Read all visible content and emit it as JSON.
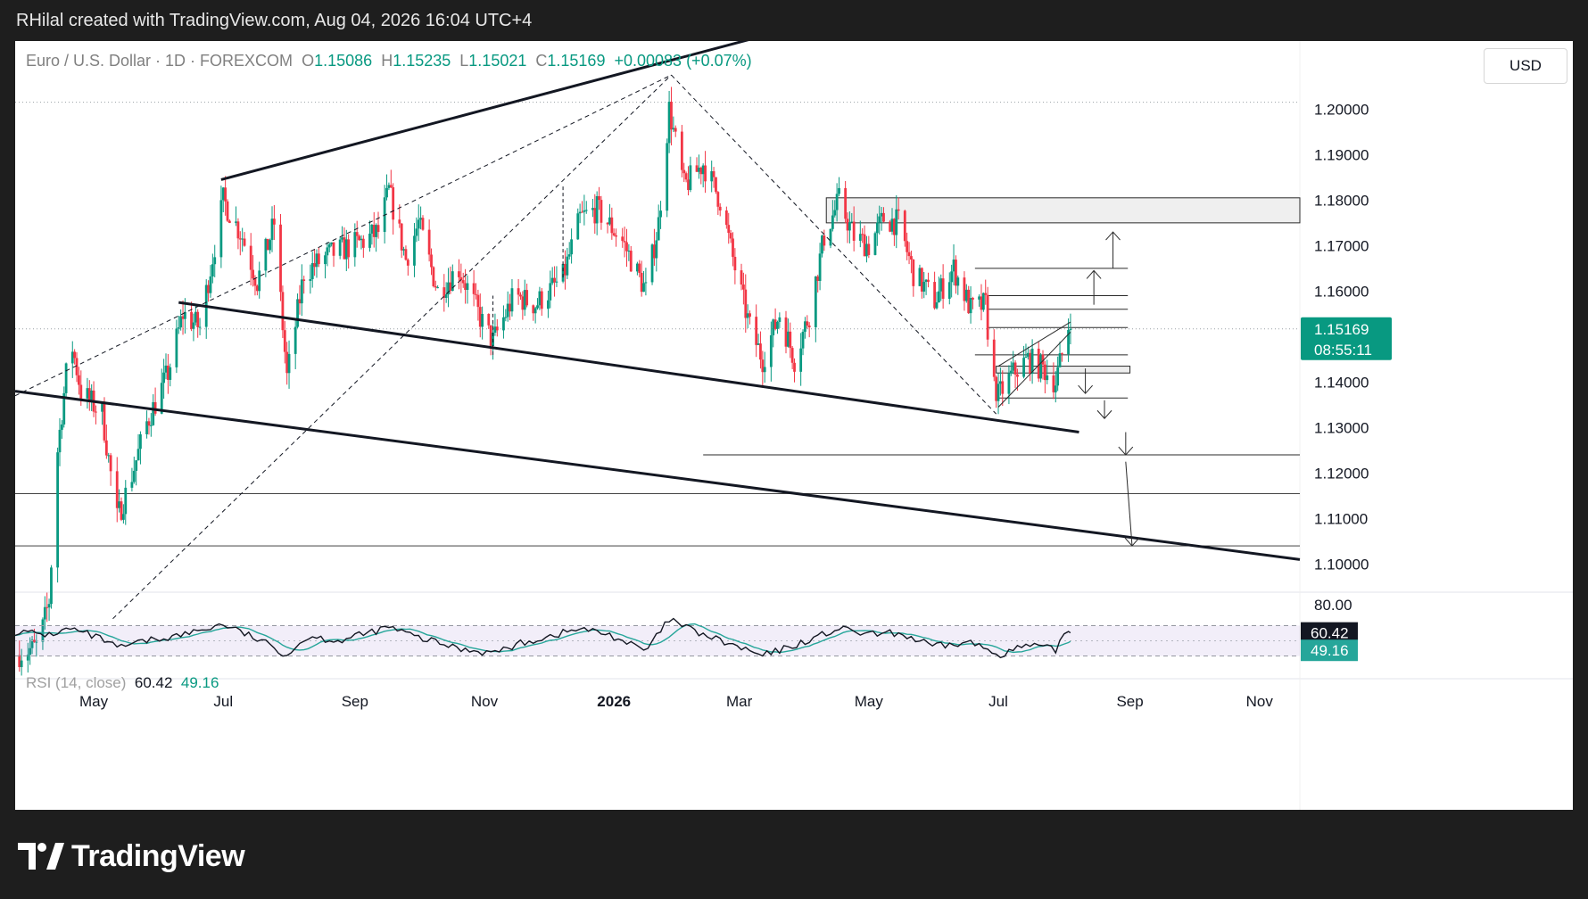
{
  "header": {
    "caption": "RHilal created with TradingView.com, Aug 04, 2026 16:04 UTC+4"
  },
  "legend": {
    "symbol": "Euro / U.S. Dollar · 1D · FOREXCOM",
    "o_label": "O",
    "open": "1.15086",
    "h_label": "H",
    "high": "1.15235",
    "l_label": "L",
    "low": "1.15021",
    "c_label": "C",
    "close": "1.15169",
    "change": "+0.00083 (+0.07%)"
  },
  "currency_button": "USD",
  "rsi": {
    "label": "RSI (14, close)",
    "value": "60.42",
    "ma": "49.16"
  },
  "branding": {
    "name": "TradingView"
  },
  "colors": {
    "up": "#089981",
    "down": "#f23645",
    "rsi_line": "#131722",
    "rsi_ma": "#26a69a",
    "rsi_band": "#7e57c2"
  },
  "chart_data": {
    "type": "candlestick",
    "price_axis": {
      "ylim": [
        1.095,
        1.213
      ],
      "ticks": [
        "1.20000",
        "1.19000",
        "1.18000",
        "1.17000",
        "1.16000",
        "1.14000",
        "1.13000",
        "1.12000",
        "1.11000",
        "1.10000"
      ],
      "tick_values": [
        1.2,
        1.19,
        1.18,
        1.17,
        1.16,
        1.14,
        1.13,
        1.12,
        1.11,
        1.1
      ],
      "last_price": {
        "value": 1.15169,
        "label": "1.15169",
        "countdown": "08:55:11"
      }
    },
    "time_axis": {
      "labels": [
        "May",
        "Jul",
        "Sep",
        "Nov",
        "2026",
        "Mar",
        "May",
        "Jul",
        "Sep",
        "Nov"
      ],
      "dates": [
        "2025-05-01",
        "2025-07-01",
        "2025-09-01",
        "2025-11-01",
        "2026-01-01",
        "2026-03-01",
        "2026-05-01",
        "2026-07-01",
        "2026-09-01",
        "2026-11-01"
      ],
      "range": [
        "2025-03-25",
        "2026-11-20"
      ]
    },
    "price_path": [
      [
        "2025-03-25",
        1.08
      ],
      [
        "2025-04-05",
        1.082
      ],
      [
        "2025-04-10",
        1.092
      ],
      [
        "2025-04-14",
        1.125
      ],
      [
        "2025-04-20",
        1.15
      ],
      [
        "2025-04-25",
        1.138
      ],
      [
        "2025-05-05",
        1.133
      ],
      [
        "2025-05-12",
        1.11
      ],
      [
        "2025-05-18",
        1.118
      ],
      [
        "2025-05-26",
        1.131
      ],
      [
        "2025-06-05",
        1.142
      ],
      [
        "2025-06-12",
        1.155
      ],
      [
        "2025-06-20",
        1.152
      ],
      [
        "2025-06-25",
        1.165
      ],
      [
        "2025-07-01",
        1.18
      ],
      [
        "2025-07-10",
        1.172
      ],
      [
        "2025-07-17",
        1.162
      ],
      [
        "2025-07-25",
        1.175
      ],
      [
        "2025-07-31",
        1.141
      ],
      [
        "2025-08-08",
        1.164
      ],
      [
        "2025-08-20",
        1.168
      ],
      [
        "2025-09-05",
        1.171
      ],
      [
        "2025-09-12",
        1.173
      ],
      [
        "2025-09-17",
        1.182
      ],
      [
        "2025-09-25",
        1.167
      ],
      [
        "2025-10-01",
        1.175
      ],
      [
        "2025-10-10",
        1.16
      ],
      [
        "2025-10-20",
        1.165
      ],
      [
        "2025-11-01",
        1.152
      ],
      [
        "2025-11-05",
        1.149
      ],
      [
        "2025-11-15",
        1.159
      ],
      [
        "2025-11-25",
        1.157
      ],
      [
        "2025-12-08",
        1.163
      ],
      [
        "2025-12-16",
        1.176
      ],
      [
        "2025-12-24",
        1.178
      ],
      [
        "2026-01-05",
        1.171
      ],
      [
        "2026-01-16",
        1.16
      ],
      [
        "2026-01-22",
        1.175
      ],
      [
        "2026-01-27",
        1.2
      ],
      [
        "2026-02-03",
        1.183
      ],
      [
        "2026-02-12",
        1.188
      ],
      [
        "2026-02-20",
        1.18
      ],
      [
        "2026-02-28",
        1.163
      ],
      [
        "2026-03-06",
        1.152
      ],
      [
        "2026-03-12",
        1.145
      ],
      [
        "2026-03-20",
        1.155
      ],
      [
        "2026-03-27",
        1.145
      ],
      [
        "2026-04-03",
        1.155
      ],
      [
        "2026-04-10",
        1.172
      ],
      [
        "2026-04-17",
        1.18
      ],
      [
        "2026-04-24",
        1.172
      ],
      [
        "2026-05-01",
        1.17
      ],
      [
        "2026-05-08",
        1.176
      ],
      [
        "2026-05-15",
        1.175
      ],
      [
        "2026-05-22",
        1.164
      ],
      [
        "2026-06-01",
        1.158
      ],
      [
        "2026-06-10",
        1.165
      ],
      [
        "2026-06-18",
        1.156
      ],
      [
        "2026-06-25",
        1.157
      ],
      [
        "2026-06-28",
        1.141
      ],
      [
        "2026-07-01",
        1.137
      ],
      [
        "2026-07-08",
        1.142
      ],
      [
        "2026-07-15",
        1.145
      ],
      [
        "2026-07-22",
        1.143
      ],
      [
        "2026-07-28",
        1.14
      ],
      [
        "2026-07-31",
        1.146
      ],
      [
        "2026-08-02",
        1.153
      ],
      [
        "2026-08-04",
        1.1517
      ]
    ],
    "drawn_levels": [
      1.1805,
      1.175,
      1.165,
      1.159,
      1.156,
      1.152,
      1.146,
      1.1435,
      1.142,
      1.1365,
      1.124,
      1.1155,
      1.104
    ],
    "rsi": {
      "band": [
        30,
        70
      ],
      "mid": 50,
      "last": 60.42,
      "last_ma": 49.16,
      "series": [
        [
          "2025-03-25",
          62
        ],
        [
          "2025-04-10",
          58
        ],
        [
          "2025-04-20",
          66
        ],
        [
          "2025-05-05",
          52
        ],
        [
          "2025-05-12",
          40
        ],
        [
          "2025-05-26",
          50
        ],
        [
          "2025-06-12",
          58
        ],
        [
          "2025-07-01",
          72
        ],
        [
          "2025-07-17",
          52
        ],
        [
          "2025-07-31",
          32
        ],
        [
          "2025-08-10",
          56
        ],
        [
          "2025-08-25",
          50
        ],
        [
          "2025-09-17",
          68
        ],
        [
          "2025-10-01",
          54
        ],
        [
          "2025-10-20",
          40
        ],
        [
          "2025-11-05",
          34
        ],
        [
          "2025-11-20",
          48
        ],
        [
          "2025-12-16",
          66
        ],
        [
          "2025-12-30",
          58
        ],
        [
          "2026-01-16",
          36
        ],
        [
          "2026-01-27",
          78
        ],
        [
          "2026-02-10",
          60
        ],
        [
          "2026-02-28",
          42
        ],
        [
          "2026-03-12",
          30
        ],
        [
          "2026-03-27",
          44
        ],
        [
          "2026-04-17",
          66
        ],
        [
          "2026-05-01",
          58
        ],
        [
          "2026-05-15",
          60
        ],
        [
          "2026-06-01",
          42
        ],
        [
          "2026-06-18",
          48
        ],
        [
          "2026-07-01",
          32
        ],
        [
          "2026-07-15",
          44
        ],
        [
          "2026-07-28",
          38
        ],
        [
          "2026-08-02",
          64
        ],
        [
          "2026-08-04",
          60.42
        ]
      ]
    }
  }
}
